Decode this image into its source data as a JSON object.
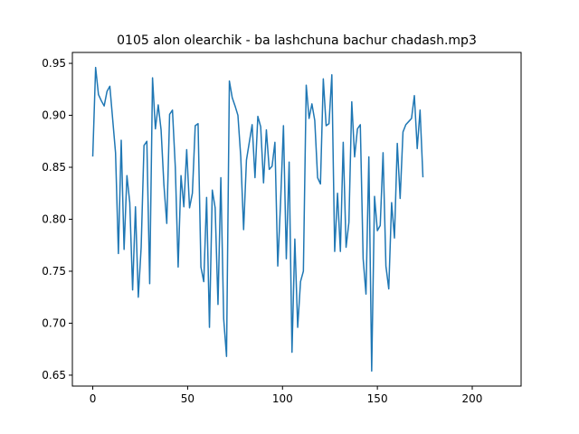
{
  "chart_data": {
    "type": "line",
    "title": "0105 alon olearchik - ba lashchuna bachur chadash.mp3",
    "xlabel": "",
    "ylabel": "",
    "xlim": [
      -10.75,
      225.75
    ],
    "ylim": [
      0.6395,
      0.9605
    ],
    "x_ticks": [
      0,
      50,
      100,
      150,
      200
    ],
    "y_ticks": [
      0.65,
      0.7,
      0.75,
      0.8,
      0.85,
      0.9,
      0.95
    ],
    "y_tick_labels": [
      "0.65",
      "0.70",
      "0.75",
      "0.80",
      "0.85",
      "0.90",
      "0.95"
    ],
    "grid": false,
    "series": [
      {
        "color": "#1f77b4",
        "x_start": 0,
        "x_step": 1.5,
        "values": [
          0.861,
          0.946,
          0.92,
          0.914,
          0.909,
          0.923,
          0.928,
          0.896,
          0.864,
          0.767,
          0.876,
          0.771,
          0.842,
          0.816,
          0.732,
          0.812,
          0.725,
          0.773,
          0.871,
          0.875,
          0.738,
          0.936,
          0.887,
          0.91,
          0.886,
          0.833,
          0.796,
          0.901,
          0.905,
          0.85,
          0.754,
          0.842,
          0.812,
          0.867,
          0.811,
          0.825,
          0.89,
          0.892,
          0.754,
          0.74,
          0.821,
          0.696,
          0.828,
          0.811,
          0.718,
          0.84,
          0.704,
          0.668,
          0.933,
          0.917,
          0.909,
          0.9,
          0.86,
          0.79,
          0.857,
          0.874,
          0.891,
          0.84,
          0.899,
          0.889,
          0.835,
          0.886,
          0.848,
          0.851,
          0.874,
          0.755,
          0.817,
          0.89,
          0.762,
          0.855,
          0.672,
          0.781,
          0.696,
          0.74,
          0.75,
          0.929,
          0.897,
          0.911,
          0.895,
          0.84,
          0.834,
          0.935,
          0.89,
          0.892,
          0.939,
          0.769,
          0.825,
          0.769,
          0.874,
          0.773,
          0.797,
          0.913,
          0.86,
          0.887,
          0.891,
          0.762,
          0.728,
          0.86,
          0.654,
          0.822,
          0.789,
          0.794,
          0.864,
          0.755,
          0.733,
          0.816,
          0.782,
          0.873,
          0.82,
          0.884,
          0.891,
          0.894,
          0.897,
          0.919,
          0.868,
          0.905,
          0.841
        ]
      }
    ]
  }
}
